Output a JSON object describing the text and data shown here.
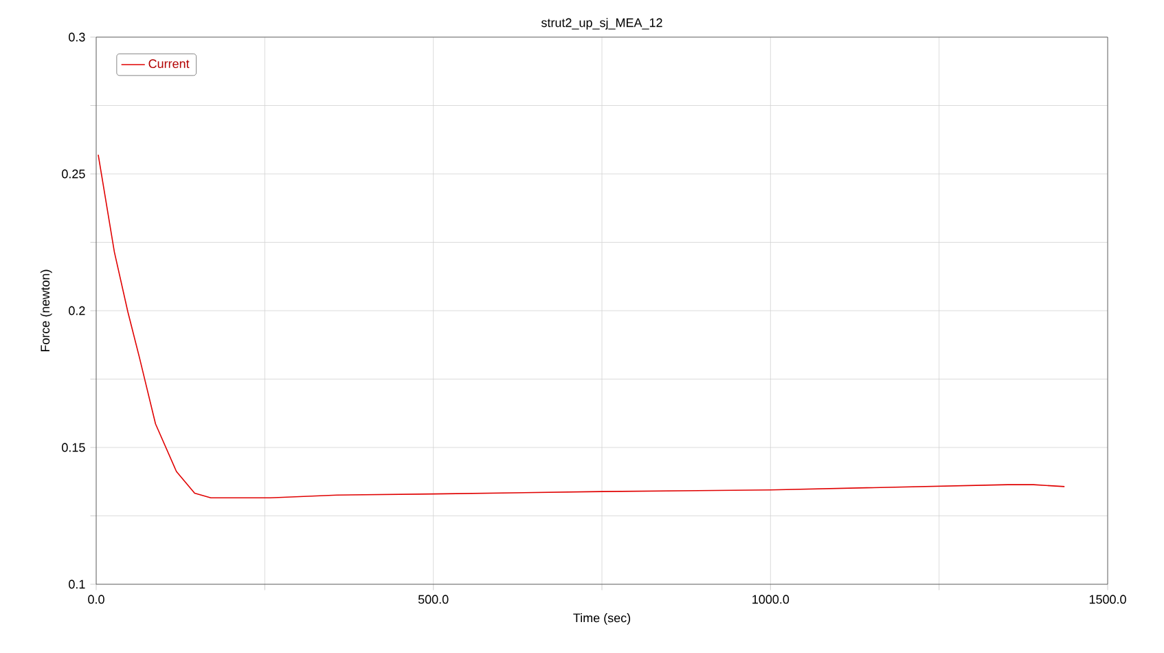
{
  "chart_data": {
    "type": "line",
    "title": "strut2_up_sj_MEA_12",
    "xlabel": "Time (sec)",
    "ylabel": "Force (newton)",
    "x": [
      3,
      27,
      47,
      64,
      88,
      119,
      146,
      170,
      258,
      357,
      500,
      750,
      1000,
      1352,
      1390,
      1436
    ],
    "series": [
      {
        "name": "Current",
        "color": "#e00000",
        "values": [
          0.257,
          0.2214,
          0.1995,
          0.183,
          0.1586,
          0.1412,
          0.1333,
          0.1316,
          0.1316,
          0.1326,
          0.133,
          0.1339,
          0.1345,
          0.1364,
          0.1364,
          0.1357
        ]
      }
    ],
    "xlim": [
      0,
      1500
    ],
    "ylim": [
      0.1,
      0.3
    ],
    "xticks": [
      {
        "value": 0,
        "label": "0.0"
      },
      {
        "value": 250,
        "label": null
      },
      {
        "value": 500,
        "label": "500.0"
      },
      {
        "value": 750,
        "label": null
      },
      {
        "value": 1000,
        "label": "1000.0"
      },
      {
        "value": 1250,
        "label": null
      },
      {
        "value": 1500,
        "label": "1500.0"
      }
    ],
    "yticks": [
      0.1,
      {
        "value": 0.125,
        "label": null
      },
      0.15,
      {
        "value": 0.175,
        "label": null
      },
      0.2,
      {
        "value": 0.225,
        "label": null
      },
      0.25,
      {
        "value": 0.275,
        "label": null
      },
      0.3
    ],
    "grid": true,
    "legend": "top left",
    "marker": "none",
    "line_style": "solid"
  }
}
